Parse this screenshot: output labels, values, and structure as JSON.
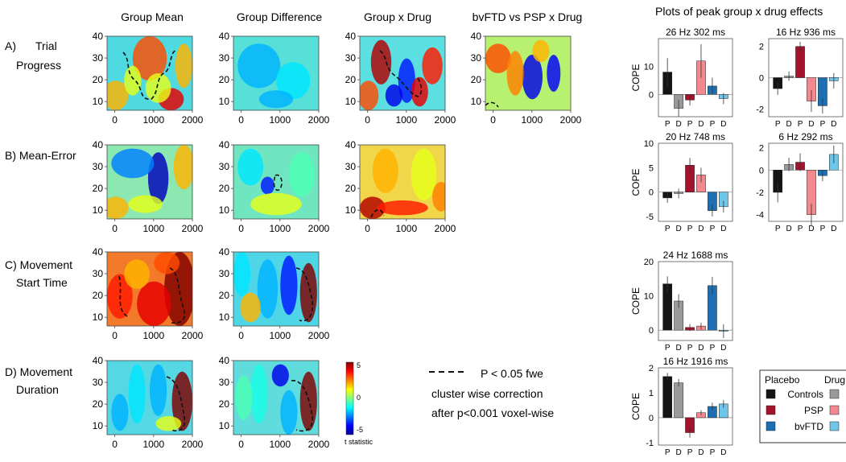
{
  "column_titles": [
    "Group Mean",
    "Group Difference",
    "Group x Drug",
    "bvFTD vs PSP x Drug"
  ],
  "row_labels": [
    [
      "A)",
      "Trial",
      "Progress"
    ],
    [
      "B) Mean-Error"
    ],
    [
      "C) Movement",
      "Start Time"
    ],
    [
      "D) Movement",
      "Duration"
    ]
  ],
  "right_title": "Plots of peak group x drug effects",
  "colorbar": {
    "ticks": [
      "5",
      "0",
      "-5"
    ],
    "label": "t statistic"
  },
  "significance_note": {
    "line1": "P < 0.05 fwe",
    "line2": "cluster wise correction",
    "line3": "after p<0.001 voxel-wise"
  },
  "legend": {
    "placebo_header": "Placebo",
    "drug_header": "Drug",
    "entries": [
      {
        "label": "Controls",
        "placebo": "#141414",
        "drug": "#9a9a9a"
      },
      {
        "label": "PSP",
        "placebo": "#a3132b",
        "drug": "#f4888f"
      },
      {
        "label": "bvFTD",
        "placebo": "#1d6fb3",
        "drug": "#6ec6ea"
      }
    ]
  },
  "colors": {
    "map_low": "#00008f",
    "map_mid": "#7fff80",
    "map_high": "#800000"
  },
  "chart_data": [
    {
      "type": "heatmap",
      "row": 0,
      "col": 0,
      "title": "Group Mean",
      "x_ticks": [
        "0",
        "1000",
        "2000"
      ],
      "y_ticks": [
        "40",
        "30",
        "20",
        "10"
      ],
      "xlim": [
        -200,
        2000
      ],
      "ylim": [
        6,
        40
      ],
      "colormap": "jet",
      "clim": [
        -5,
        5
      ],
      "cluster_outline": "dashed black"
    },
    {
      "type": "heatmap",
      "row": 0,
      "col": 1,
      "title": "Group Difference",
      "x_ticks": [
        "0",
        "1000",
        "2000"
      ],
      "y_ticks": [
        "40",
        "30",
        "20",
        "10"
      ],
      "xlim": [
        -200,
        2000
      ],
      "ylim": [
        6,
        40
      ],
      "colormap": "jet",
      "clim": [
        -5,
        5
      ]
    },
    {
      "type": "heatmap",
      "row": 0,
      "col": 2,
      "title": "Group x Drug",
      "x_ticks": [
        "0",
        "1000",
        "2000"
      ],
      "y_ticks": [
        "40",
        "30",
        "20",
        "10"
      ],
      "xlim": [
        -200,
        2000
      ],
      "ylim": [
        6,
        40
      ],
      "colormap": "jet",
      "clim": [
        -5,
        5
      ],
      "cluster_outline": "dashed black"
    },
    {
      "type": "heatmap",
      "row": 0,
      "col": 3,
      "title": "bvFTD vs PSP x Drug",
      "x_ticks": [
        "0",
        "1000",
        "2000"
      ],
      "y_ticks": [
        "40",
        "30",
        "20",
        "10"
      ],
      "xlim": [
        -200,
        2000
      ],
      "ylim": [
        6,
        40
      ],
      "colormap": "jet",
      "clim": [
        -5,
        5
      ],
      "cluster_outline": "dashed black"
    },
    {
      "type": "heatmap",
      "row": 1,
      "col": 0,
      "x_ticks": [
        "0",
        "1000",
        "2000"
      ],
      "y_ticks": [
        "40",
        "30",
        "20",
        "10"
      ],
      "xlim": [
        -200,
        2000
      ],
      "ylim": [
        6,
        40
      ],
      "colormap": "jet",
      "clim": [
        -5,
        5
      ]
    },
    {
      "type": "heatmap",
      "row": 1,
      "col": 1,
      "x_ticks": [
        "0",
        "1000",
        "2000"
      ],
      "y_ticks": [
        "40",
        "30",
        "20",
        "10"
      ],
      "xlim": [
        -200,
        2000
      ],
      "ylim": [
        6,
        40
      ],
      "colormap": "jet",
      "clim": [
        -5,
        5
      ],
      "cluster_outline": "dashed black"
    },
    {
      "type": "heatmap",
      "row": 1,
      "col": 2,
      "x_ticks": [
        "0",
        "1000",
        "2000"
      ],
      "y_ticks": [
        "40",
        "30",
        "20",
        "10"
      ],
      "xlim": [
        -200,
        2000
      ],
      "ylim": [
        6,
        40
      ],
      "colormap": "jet",
      "clim": [
        -5,
        5
      ],
      "cluster_outline": "dashed black"
    },
    {
      "type": "heatmap",
      "row": 2,
      "col": 0,
      "x_ticks": [
        "0",
        "1000",
        "2000"
      ],
      "y_ticks": [
        "40",
        "30",
        "20",
        "10"
      ],
      "xlim": [
        -200,
        2000
      ],
      "ylim": [
        6,
        40
      ],
      "colormap": "jet",
      "clim": [
        -5,
        5
      ],
      "cluster_outline": "dashed black"
    },
    {
      "type": "heatmap",
      "row": 2,
      "col": 1,
      "x_ticks": [
        "0",
        "1000",
        "2000"
      ],
      "y_ticks": [
        "40",
        "30",
        "20",
        "10"
      ],
      "xlim": [
        -200,
        2000
      ],
      "ylim": [
        6,
        40
      ],
      "colormap": "jet",
      "clim": [
        -5,
        5
      ],
      "cluster_outline": "dashed black"
    },
    {
      "type": "heatmap",
      "row": 3,
      "col": 0,
      "x_ticks": [
        "0",
        "1000",
        "2000"
      ],
      "y_ticks": [
        "40",
        "30",
        "20",
        "10"
      ],
      "xlim": [
        -200,
        2000
      ],
      "ylim": [
        6,
        40
      ],
      "colormap": "jet",
      "clim": [
        -5,
        5
      ],
      "cluster_outline": "dashed black"
    },
    {
      "type": "heatmap",
      "row": 3,
      "col": 1,
      "x_ticks": [
        "0",
        "1000",
        "2000"
      ],
      "y_ticks": [
        "40",
        "30",
        "20",
        "10"
      ],
      "xlim": [
        -200,
        2000
      ],
      "ylim": [
        6,
        40
      ],
      "colormap": "jet",
      "clim": [
        -5,
        5
      ],
      "cluster_outline": "dashed black"
    },
    {
      "type": "bar",
      "title": "26 Hz 302 ms",
      "ylabel": "COPE",
      "categories": [
        "P",
        "D",
        "P",
        "D",
        "P",
        "D"
      ],
      "values": [
        8,
        -5,
        -2,
        12,
        3,
        -1.5
      ],
      "errors": [
        5,
        3,
        2,
        6,
        3,
        2
      ],
      "y_ticks": [
        0,
        10
      ],
      "ylim": [
        -8,
        20
      ]
    },
    {
      "type": "bar",
      "title": "16 Hz 936 ms",
      "ylabel": "",
      "categories": [
        "P",
        "D",
        "P",
        "D",
        "P",
        "D"
      ],
      "values": [
        -0.7,
        0.1,
        2,
        -1.5,
        -1.8,
        -0.2
      ],
      "errors": [
        0.4,
        0.3,
        0.3,
        0.7,
        0.5,
        0.5
      ],
      "y_ticks": [
        -2,
        0,
        2
      ],
      "ylim": [
        -2.5,
        2.5
      ]
    },
    {
      "type": "bar",
      "title": "20 Hz 748 ms",
      "ylabel": "COPE",
      "categories": [
        "P",
        "D",
        "P",
        "D",
        "P",
        "D"
      ],
      "values": [
        -1.2,
        -0.3,
        5.5,
        3.5,
        -3.8,
        -3
      ],
      "errors": [
        1,
        1,
        1.5,
        1.5,
        1.2,
        1.2
      ],
      "y_ticks": [
        -5,
        0,
        5,
        10
      ],
      "ylim": [
        -6,
        10
      ]
    },
    {
      "type": "bar",
      "title": "6 Hz 292 ms",
      "ylabel": "",
      "categories": [
        "P",
        "D",
        "P",
        "D",
        "P",
        "D"
      ],
      "values": [
        -2,
        0.5,
        0.7,
        -4,
        -0.5,
        1.4
      ],
      "errors": [
        0.9,
        0.6,
        0.8,
        1,
        0.5,
        0.8
      ],
      "y_ticks": [
        -4,
        -2,
        0,
        2
      ],
      "ylim": [
        -4.6,
        2.4
      ]
    },
    {
      "type": "bar",
      "title": "24 Hz 1688 ms",
      "ylabel": "COPE",
      "categories": [
        "P",
        "D",
        "P",
        "D",
        "P",
        "D"
      ],
      "values": [
        13.5,
        8.5,
        0.8,
        1.2,
        13,
        -0.3
      ],
      "errors": [
        2.2,
        2,
        1,
        1,
        2.5,
        2
      ],
      "y_ticks": [
        0,
        10,
        20
      ],
      "ylim": [
        -3,
        20
      ]
    },
    {
      "type": "bar",
      "title": "16 Hz 1916 ms",
      "ylabel": "COPE",
      "categories": [
        "P",
        "D",
        "P",
        "D",
        "P",
        "D"
      ],
      "values": [
        1.65,
        1.4,
        -0.6,
        0.2,
        0.45,
        0.55
      ],
      "errors": [
        0.15,
        0.15,
        0.2,
        0.1,
        0.15,
        0.15
      ],
      "y_ticks": [
        -1,
        0,
        1,
        2
      ],
      "ylim": [
        -1.1,
        2
      ]
    }
  ]
}
